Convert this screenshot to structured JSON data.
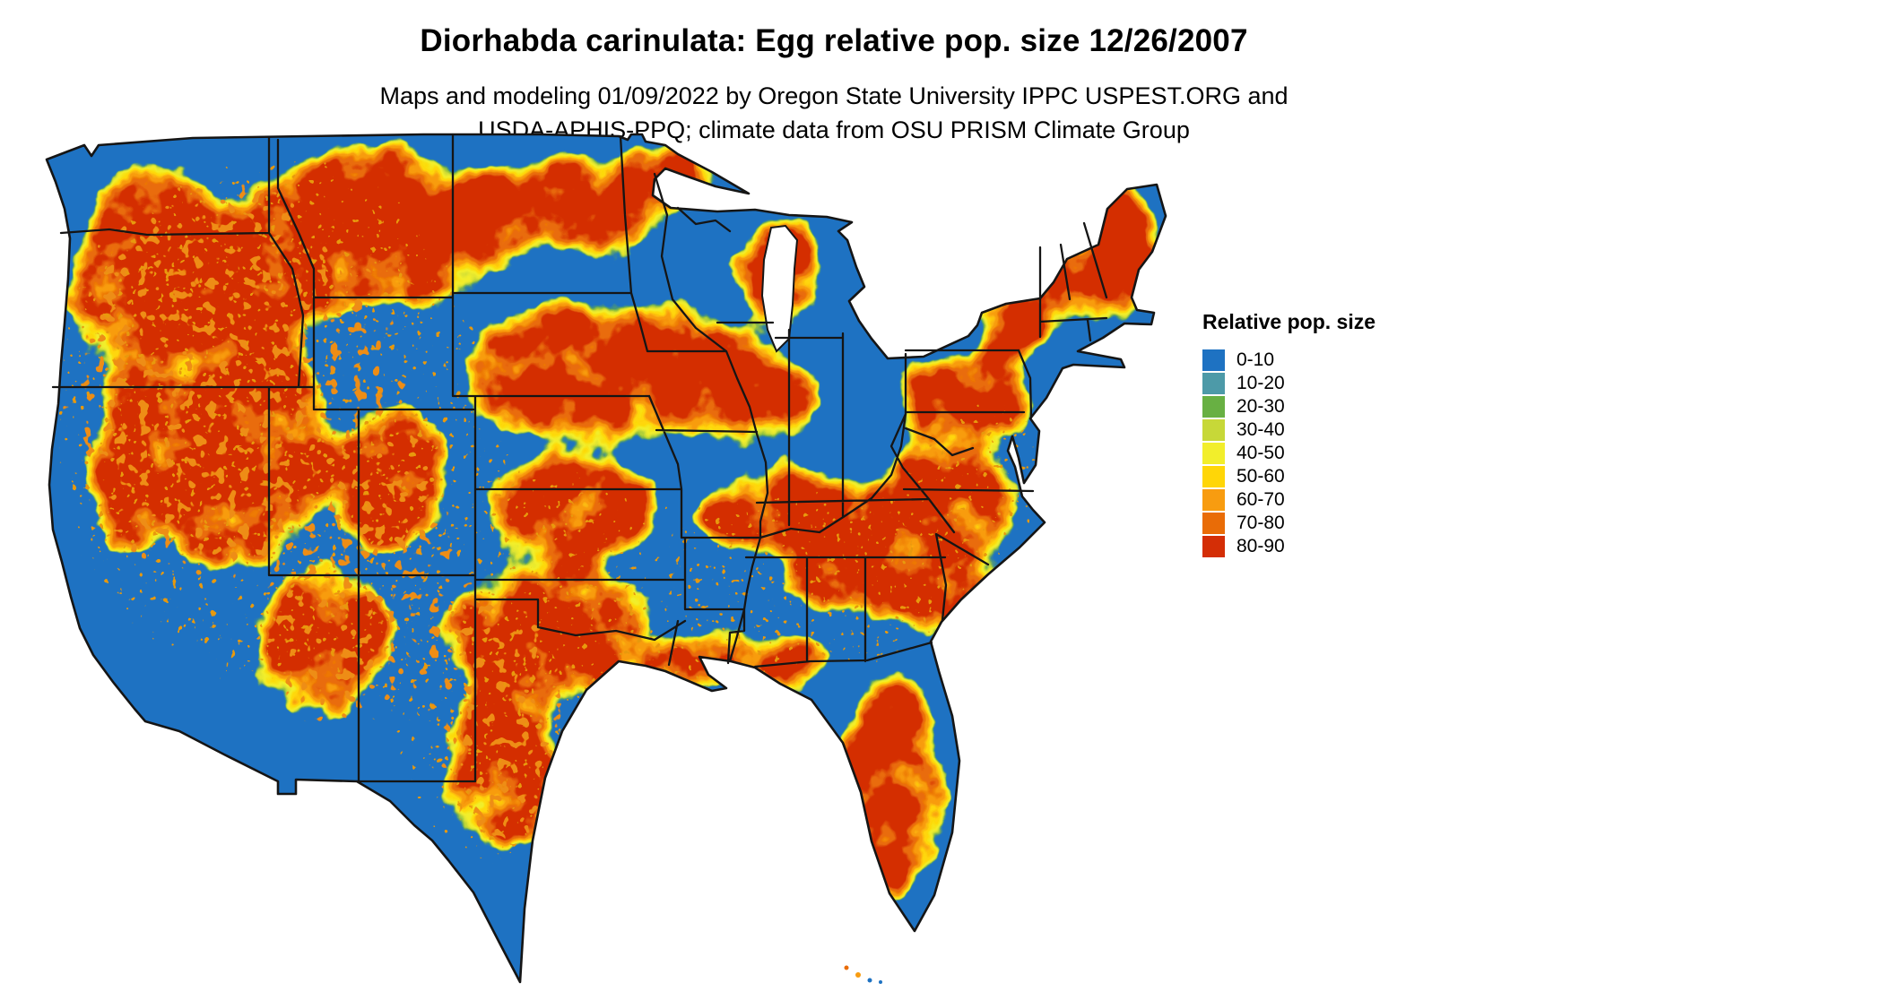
{
  "page": {
    "background": "#ffffff"
  },
  "title": "Diorhabda carinulata: Egg relative pop. size 12/26/2007",
  "subtitle": {
    "line1": "Maps and modeling 01/09/2022 by Oregon State University IPPC USPEST.ORG and",
    "line2": "USDA-APHIS-PPQ; climate data from OSU PRISM Climate Group"
  },
  "legend": {
    "title": "Relative pop. size",
    "entries": [
      {
        "label": "0-10",
        "color": "#1e72c2"
      },
      {
        "label": "10-20",
        "color": "#4d9aa8"
      },
      {
        "label": "20-30",
        "color": "#68b043"
      },
      {
        "label": "30-40",
        "color": "#c7d838"
      },
      {
        "label": "40-50",
        "color": "#f2ee2b"
      },
      {
        "label": "50-60",
        "color": "#ffd607"
      },
      {
        "label": "60-70",
        "color": "#f89c10"
      },
      {
        "label": "70-80",
        "color": "#e96c07"
      },
      {
        "label": "80-90",
        "color": "#d42e06"
      }
    ]
  },
  "map": {
    "base_color": "#1e72c2",
    "border_color": "#151515"
  }
}
